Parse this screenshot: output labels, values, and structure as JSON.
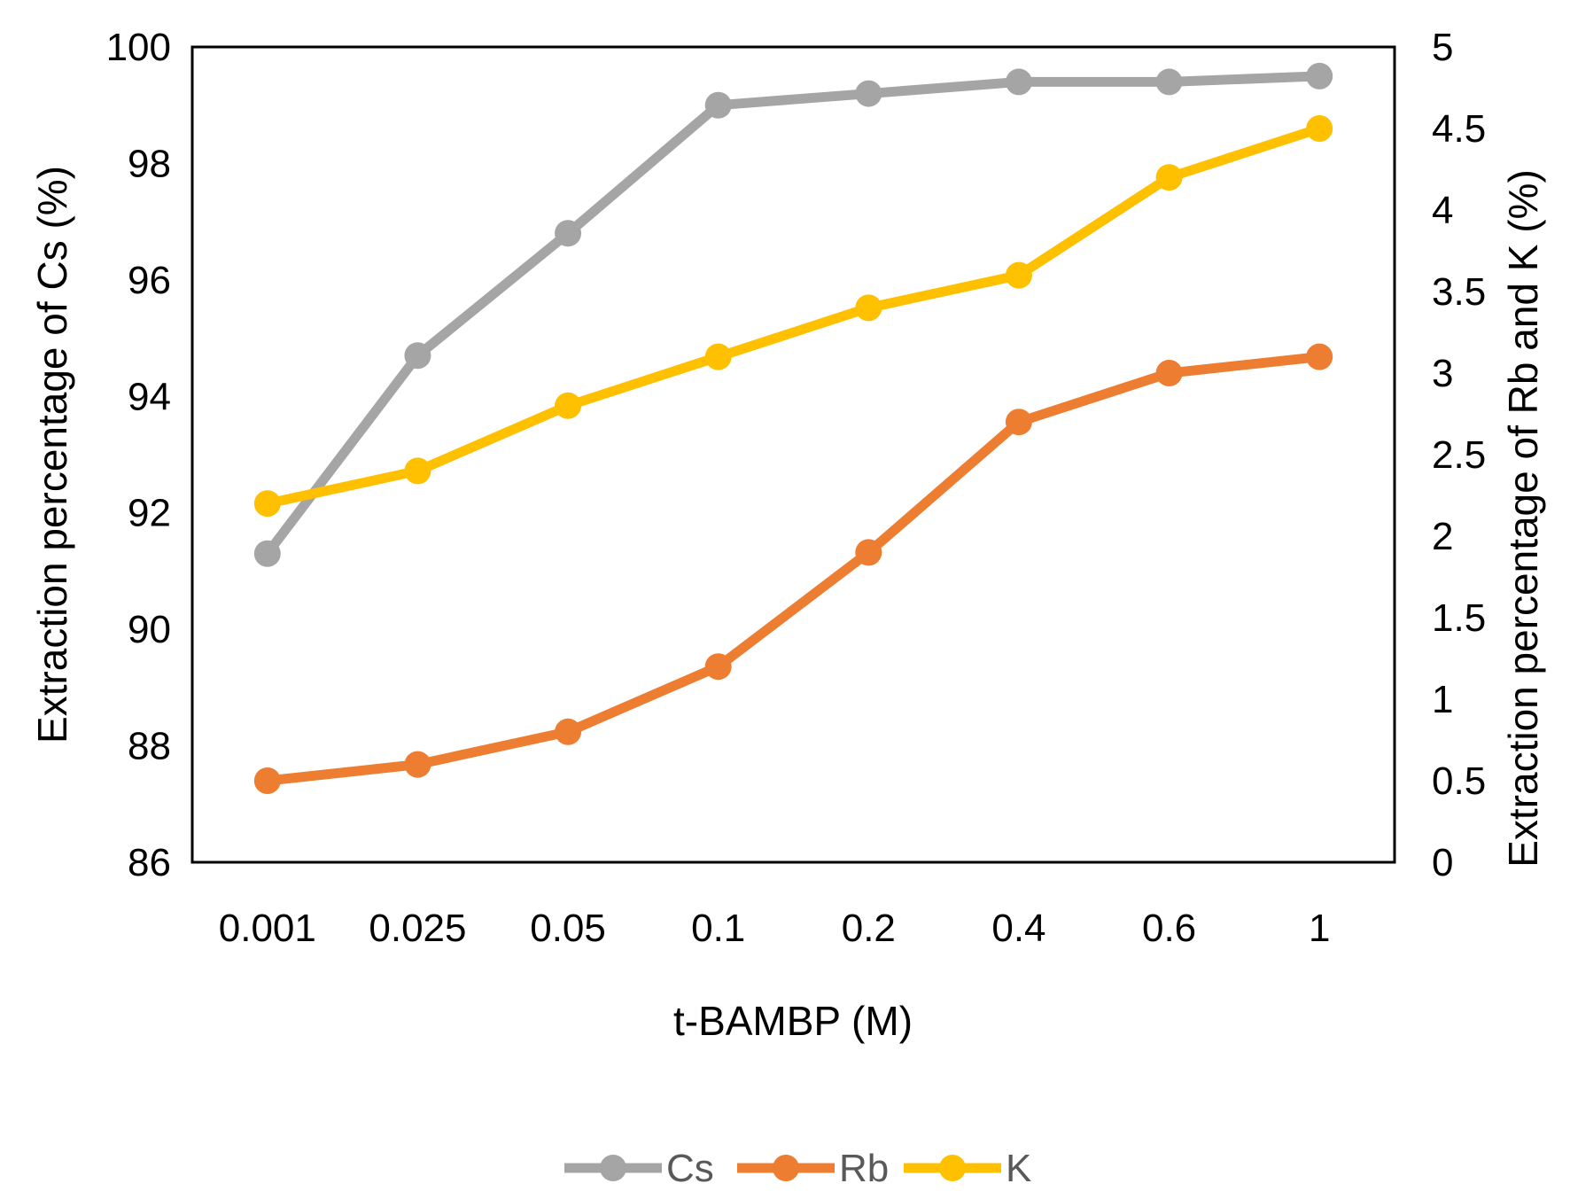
{
  "chart_data": {
    "type": "line",
    "title": "",
    "xlabel": "t-BAMBP (M)",
    "ylabel": "Extraction percentage of Cs (%)",
    "y2label": "Extraction percentage of Rb and K (%)",
    "categories": [
      "0.001",
      "0.025",
      "0.05",
      "0.1",
      "0.2",
      "0.4",
      "0.6",
      "1"
    ],
    "ylim": [
      86,
      100
    ],
    "y2lim": [
      0,
      5
    ],
    "yticks": [
      "86",
      "88",
      "90",
      "92",
      "94",
      "96",
      "98",
      "100"
    ],
    "y2ticks": [
      "0",
      "0.5",
      "1",
      "1.5",
      "2",
      "2.5",
      "3",
      "3.5",
      "4",
      "4.5",
      "5"
    ],
    "grid": false,
    "legend_position": "bottom",
    "series": [
      {
        "name": "Cs",
        "axis": "left",
        "color": "#a5a5a5",
        "values": [
          91.3,
          94.7,
          96.8,
          99.0,
          99.2,
          99.4,
          99.4,
          99.5
        ]
      },
      {
        "name": "Rb",
        "axis": "right",
        "color": "#ed7d31",
        "values": [
          0.5,
          0.6,
          0.8,
          1.2,
          1.9,
          2.7,
          3.0,
          3.1
        ]
      },
      {
        "name": "K",
        "axis": "right",
        "color": "#ffc000",
        "values": [
          2.2,
          2.4,
          2.8,
          3.1,
          3.4,
          3.6,
          4.2,
          4.5
        ]
      }
    ]
  }
}
